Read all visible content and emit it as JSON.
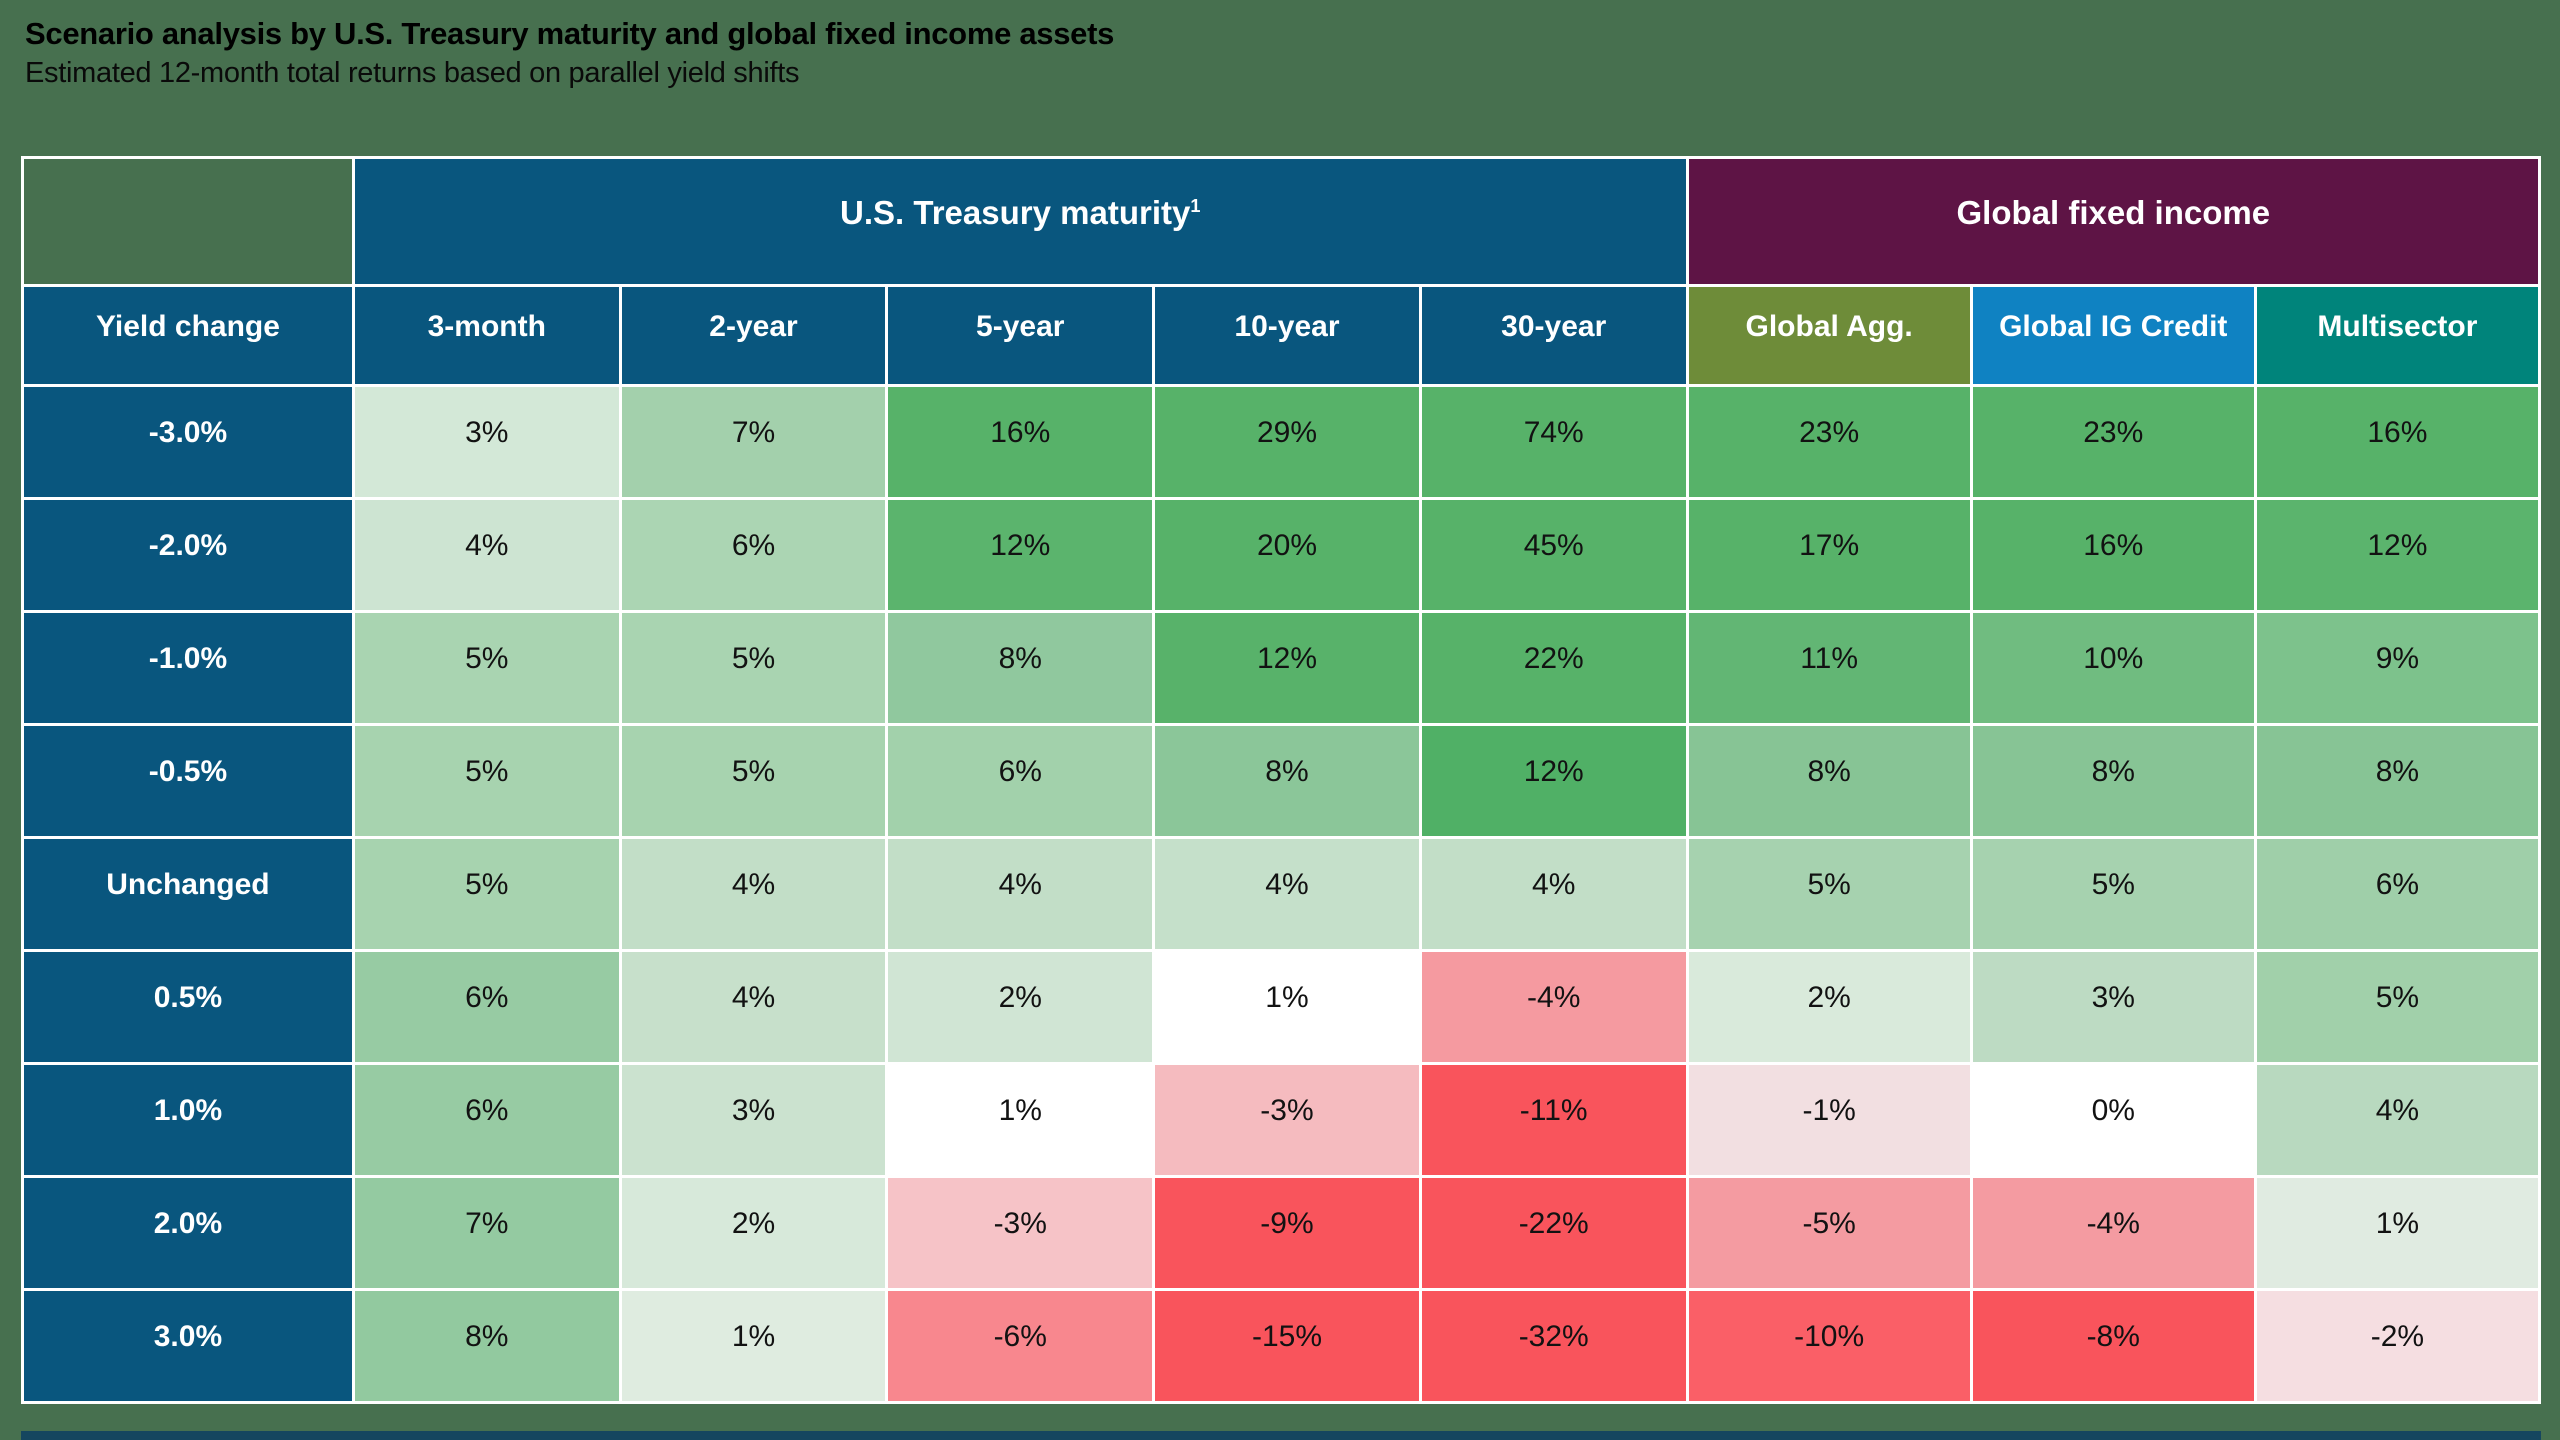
{
  "page": {
    "background": "#47704F",
    "title": "Scenario analysis by U.S. Treasury maturity and global fixed income assets",
    "subtitle": "Estimated 12-month total returns based on parallel yield shifts"
  },
  "chart_data": {
    "type": "heatmap",
    "title": "Scenario analysis by U.S. Treasury maturity and global fixed income assets",
    "subtitle": "Estimated 12-month total returns based on parallel yield shifts",
    "value_unit": "percent 12-month total return",
    "colors": {
      "page_background": "#47704F",
      "header_navy": "#09567E",
      "header_plum": "#5E1445",
      "header_olive": "#6E8C39",
      "header_blue": "#0F82C2",
      "header_teal": "#00847B",
      "positive_full": "#57B269",
      "negative_full": "#F9545C",
      "grid_border": "#FFFFFF"
    },
    "group_headers": [
      {
        "label": "",
        "sup": "",
        "colspan": 1,
        "bg": "#47704F"
      },
      {
        "label": "U.S. Treasury maturity",
        "sup": "1",
        "colspan": 5,
        "bg": "#09567E"
      },
      {
        "label": "Global fixed income",
        "sup": "",
        "colspan": 3,
        "bg": "#5E1445"
      }
    ],
    "columns": [
      {
        "label": "Yield change",
        "bg": "#09567E",
        "group": "label"
      },
      {
        "label": "3-month",
        "bg": "#09567E",
        "group": "treasury"
      },
      {
        "label": "2-year",
        "bg": "#09567E",
        "group": "treasury"
      },
      {
        "label": "5-year",
        "bg": "#09567E",
        "group": "treasury"
      },
      {
        "label": "10-year",
        "bg": "#09567E",
        "group": "treasury"
      },
      {
        "label": "30-year",
        "bg": "#09567E",
        "group": "treasury"
      },
      {
        "label": "Global Agg.",
        "bg": "#6E8C39",
        "group": "global"
      },
      {
        "label": "Global IG Credit",
        "bg": "#0F82C2",
        "group": "global"
      },
      {
        "label": "Multisector",
        "bg": "#00847B",
        "group": "global"
      }
    ],
    "row_label_bg": "#09567E",
    "rows": [
      {
        "label": "-3.0%",
        "cells": [
          {
            "v": "3%",
            "c": "#D3E8D7"
          },
          {
            "v": "7%",
            "c": "#A3D0AC"
          },
          {
            "v": "16%",
            "c": "#57B269"
          },
          {
            "v": "29%",
            "c": "#57B269"
          },
          {
            "v": "74%",
            "c": "#57B269"
          },
          {
            "v": "23%",
            "c": "#57B269"
          },
          {
            "v": "23%",
            "c": "#57B269"
          },
          {
            "v": "16%",
            "c": "#57B269"
          }
        ]
      },
      {
        "label": "-2.0%",
        "cells": [
          {
            "v": "4%",
            "c": "#CDE4D2"
          },
          {
            "v": "6%",
            "c": "#ABD5B3"
          },
          {
            "v": "12%",
            "c": "#5BB46D"
          },
          {
            "v": "20%",
            "c": "#57B269"
          },
          {
            "v": "45%",
            "c": "#57B269"
          },
          {
            "v": "17%",
            "c": "#57B269"
          },
          {
            "v": "16%",
            "c": "#57B269"
          },
          {
            "v": "12%",
            "c": "#5BB46D"
          }
        ]
      },
      {
        "label": "-1.0%",
        "cells": [
          {
            "v": "5%",
            "c": "#A9D4B1"
          },
          {
            "v": "5%",
            "c": "#A9D4B1"
          },
          {
            "v": "8%",
            "c": "#90C89E"
          },
          {
            "v": "12%",
            "c": "#58B26A"
          },
          {
            "v": "22%",
            "c": "#57B269"
          },
          {
            "v": "11%",
            "c": "#62B674"
          },
          {
            "v": "10%",
            "c": "#70BC80"
          },
          {
            "v": "9%",
            "c": "#7DC28C"
          }
        ]
      },
      {
        "label": "-0.5%",
        "cells": [
          {
            "v": "5%",
            "c": "#A7D3AF"
          },
          {
            "v": "5%",
            "c": "#A7D3AF"
          },
          {
            "v": "6%",
            "c": "#A2D1AB"
          },
          {
            "v": "8%",
            "c": "#8BC699"
          },
          {
            "v": "12%",
            "c": "#50B066"
          },
          {
            "v": "8%",
            "c": "#87C495"
          },
          {
            "v": "8%",
            "c": "#87C495"
          },
          {
            "v": "8%",
            "c": "#87C495"
          }
        ]
      },
      {
        "label": "Unchanged",
        "cells": [
          {
            "v": "5%",
            "c": "#A7D3AF"
          },
          {
            "v": "4%",
            "c": "#C2DEC7"
          },
          {
            "v": "4%",
            "c": "#C2DEC7"
          },
          {
            "v": "4%",
            "c": "#C5E0CA"
          },
          {
            "v": "4%",
            "c": "#C2DEC7"
          },
          {
            "v": "5%",
            "c": "#A6D2AF"
          },
          {
            "v": "5%",
            "c": "#A6D2AF"
          },
          {
            "v": "6%",
            "c": "#9FCFA9"
          }
        ]
      },
      {
        "label": "0.5%",
        "cells": [
          {
            "v": "6%",
            "c": "#97CBA3"
          },
          {
            "v": "4%",
            "c": "#C7E0CB"
          },
          {
            "v": "2%",
            "c": "#D0E5D4"
          },
          {
            "v": "1%",
            "c": "#FFFFFF"
          },
          {
            "v": "-4%",
            "c": "#F59AA0"
          },
          {
            "v": "2%",
            "c": "#D9EADB"
          },
          {
            "v": "3%",
            "c": "#BDDBC3"
          },
          {
            "v": "5%",
            "c": "#A1D0AA"
          }
        ]
      },
      {
        "label": "1.0%",
        "cells": [
          {
            "v": "6%",
            "c": "#97CBA3"
          },
          {
            "v": "3%",
            "c": "#CBE2CF"
          },
          {
            "v": "1%",
            "c": "#FFFFFF"
          },
          {
            "v": "-3%",
            "c": "#F5BBBF"
          },
          {
            "v": "-11%",
            "c": "#F9545C"
          },
          {
            "v": "-1%",
            "c": "#F2DFE1"
          },
          {
            "v": "0%",
            "c": "#FFFFFF"
          },
          {
            "v": "4%",
            "c": "#B8D9BF"
          }
        ]
      },
      {
        "label": "2.0%",
        "cells": [
          {
            "v": "7%",
            "c": "#94CAA1"
          },
          {
            "v": "2%",
            "c": "#D7E9DA"
          },
          {
            "v": "-3%",
            "c": "#F6C3C7"
          },
          {
            "v": "-9%",
            "c": "#F9545C"
          },
          {
            "v": "-22%",
            "c": "#F9545C"
          },
          {
            "v": "-5%",
            "c": "#F49BA1"
          },
          {
            "v": "-4%",
            "c": "#F49BA1"
          },
          {
            "v": "1%",
            "c": "#E0EBE1"
          }
        ]
      },
      {
        "label": "3.0%",
        "cells": [
          {
            "v": "8%",
            "c": "#92C99F"
          },
          {
            "v": "1%",
            "c": "#DFECE0"
          },
          {
            "v": "-6%",
            "c": "#F8878E"
          },
          {
            "v": "-15%",
            "c": "#F9545C"
          },
          {
            "v": "-32%",
            "c": "#F9545C"
          },
          {
            "v": "-10%",
            "c": "#FA5F67"
          },
          {
            "v": "-8%",
            "c": "#F9545C"
          },
          {
            "v": "-2%",
            "c": "#F5DEE1"
          }
        ]
      }
    ]
  }
}
